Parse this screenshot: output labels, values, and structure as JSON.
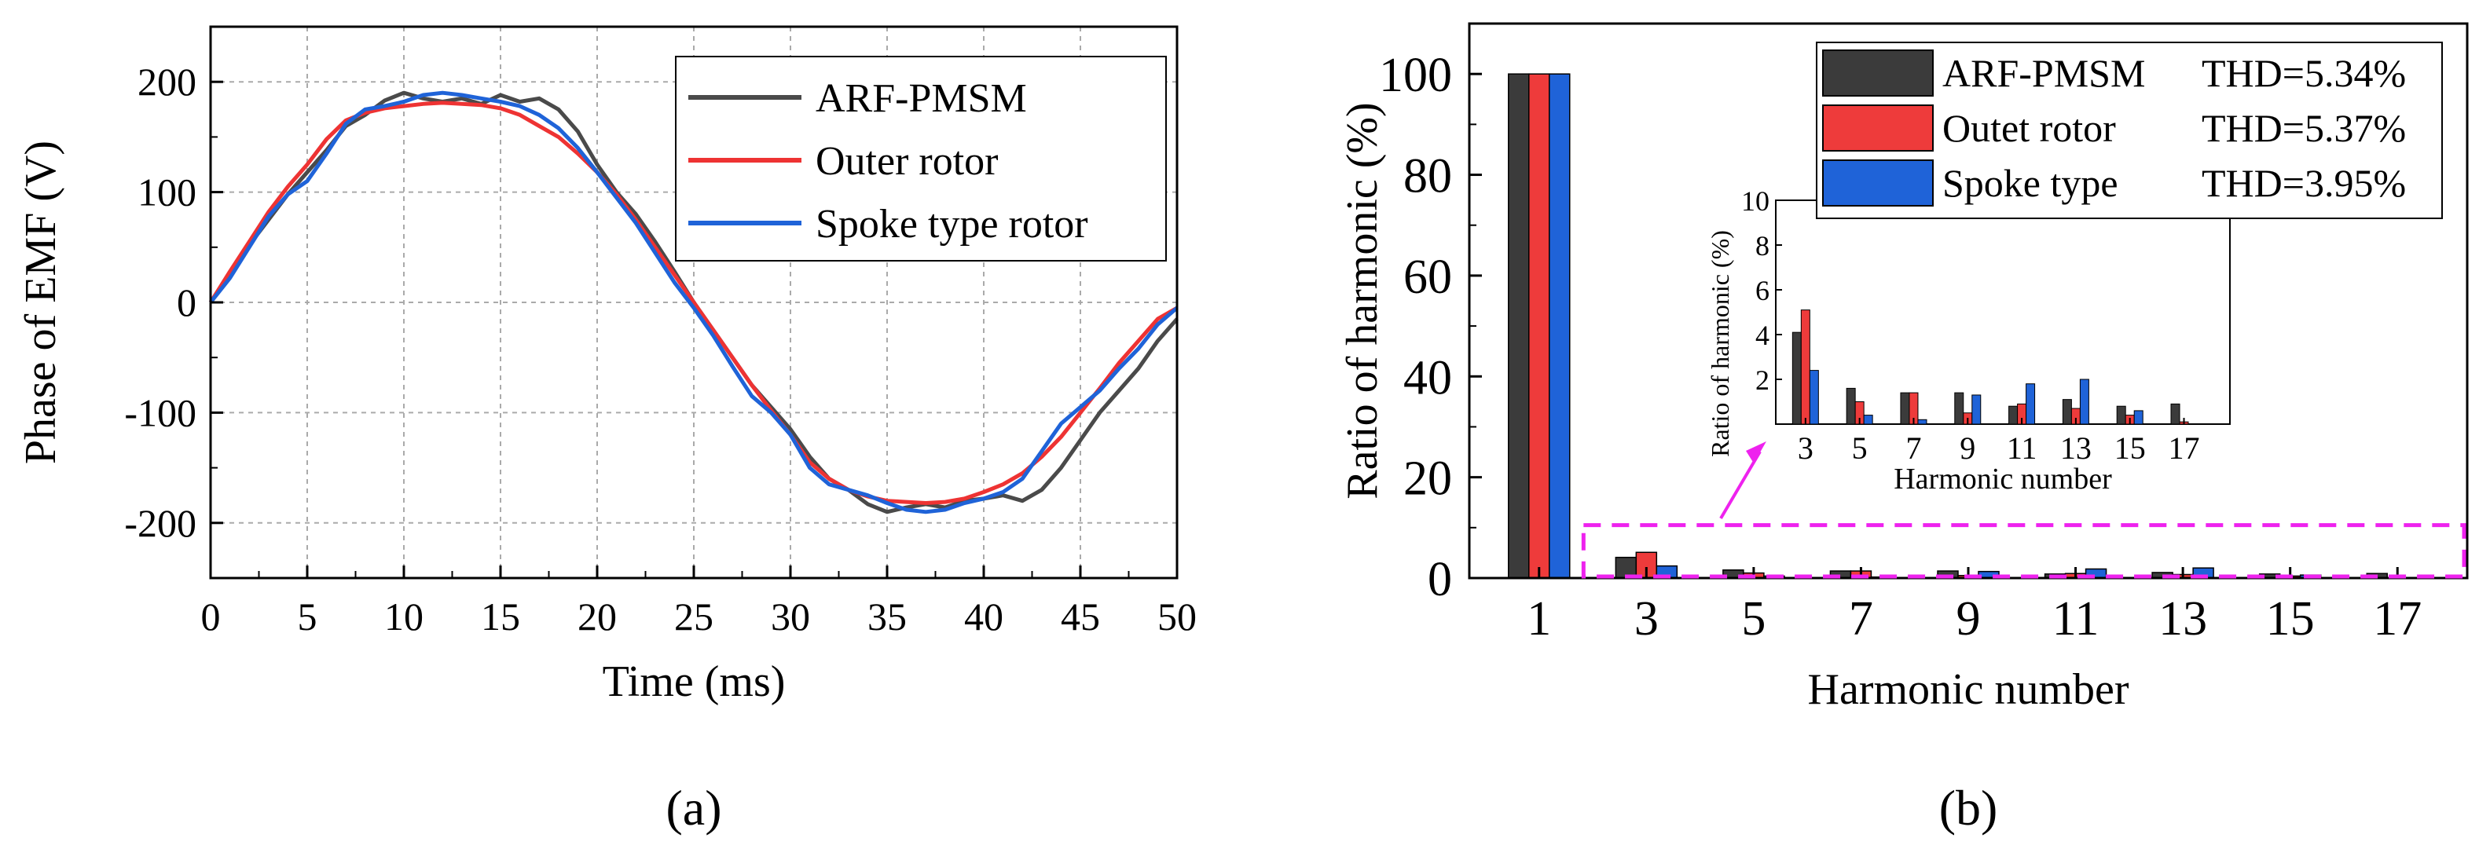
{
  "chart_data": [
    {
      "type": "line",
      "panel_label": "(a)",
      "title": "",
      "xlabel": "Time (ms)",
      "ylabel": "Phase of EMF (V)",
      "xlim": [
        0,
        50
      ],
      "ylim": [
        -250,
        250
      ],
      "xticks": [
        0,
        5,
        10,
        15,
        20,
        25,
        30,
        35,
        40,
        45,
        50
      ],
      "yticks": [
        -200,
        -100,
        0,
        100,
        200
      ],
      "grid": true,
      "legend": "top-right",
      "series": [
        {
          "name": "ARF-PMSM",
          "color": "#4a4a4a",
          "x": [
            0,
            1,
            2,
            3,
            4,
            5,
            6,
            7,
            8,
            9,
            10,
            11,
            12,
            13,
            14,
            15,
            16,
            17,
            18,
            19,
            20,
            21,
            22,
            23,
            24,
            25,
            26,
            27,
            28,
            29,
            30,
            31,
            32,
            33,
            34,
            35,
            36,
            37,
            38,
            39,
            40,
            41,
            42,
            43,
            44,
            45,
            46,
            47,
            48,
            49,
            50
          ],
          "values": [
            0,
            25,
            52,
            75,
            98,
            118,
            138,
            160,
            170,
            183,
            190,
            185,
            182,
            185,
            180,
            188,
            182,
            185,
            175,
            155,
            125,
            100,
            80,
            55,
            28,
            0,
            -25,
            -50,
            -75,
            -95,
            -115,
            -140,
            -160,
            -170,
            -183,
            -190,
            -186,
            -183,
            -186,
            -180,
            -178,
            -175,
            -180,
            -170,
            -150,
            -125,
            -100,
            -80,
            -60,
            -35,
            -15
          ]
        },
        {
          "name": "Outer rotor",
          "color": "#ee3333",
          "x": [
            0,
            1,
            2,
            3,
            4,
            5,
            6,
            7,
            8,
            9,
            10,
            11,
            12,
            13,
            14,
            15,
            16,
            17,
            18,
            19,
            20,
            21,
            22,
            23,
            24,
            25,
            26,
            27,
            28,
            29,
            30,
            31,
            32,
            33,
            34,
            35,
            36,
            37,
            38,
            39,
            40,
            41,
            42,
            43,
            44,
            45,
            46,
            47,
            48,
            49,
            50
          ],
          "values": [
            0,
            28,
            55,
            82,
            105,
            125,
            148,
            165,
            172,
            176,
            178,
            180,
            181,
            180,
            179,
            176,
            170,
            160,
            150,
            135,
            118,
            98,
            75,
            50,
            25,
            0,
            -25,
            -50,
            -75,
            -98,
            -120,
            -145,
            -160,
            -170,
            -176,
            -180,
            -181,
            -182,
            -181,
            -178,
            -172,
            -165,
            -155,
            -140,
            -122,
            -100,
            -78,
            -55,
            -35,
            -15,
            -5
          ]
        },
        {
          "name": "Spoke type rotor",
          "color": "#1f63d8",
          "x": [
            0,
            1,
            2,
            3,
            4,
            5,
            6,
            7,
            8,
            9,
            10,
            11,
            12,
            13,
            14,
            15,
            16,
            17,
            18,
            19,
            20,
            21,
            22,
            23,
            24,
            25,
            26,
            27,
            28,
            29,
            30,
            31,
            32,
            33,
            34,
            35,
            36,
            37,
            38,
            39,
            40,
            41,
            42,
            43,
            44,
            45,
            46,
            47,
            48,
            49,
            50
          ],
          "values": [
            0,
            22,
            50,
            78,
            98,
            110,
            135,
            162,
            175,
            178,
            182,
            188,
            190,
            188,
            185,
            182,
            178,
            170,
            158,
            140,
            118,
            95,
            72,
            45,
            18,
            -5,
            -30,
            -58,
            -85,
            -100,
            -120,
            -150,
            -165,
            -170,
            -175,
            -182,
            -188,
            -190,
            -188,
            -182,
            -178,
            -172,
            -160,
            -135,
            -110,
            -95,
            -80,
            -60,
            -42,
            -20,
            -5
          ]
        }
      ]
    },
    {
      "type": "bar",
      "panel_label": "(b)",
      "title": "",
      "xlabel": "Harmonic number",
      "ylabel": "Ratio of harmonic (%)",
      "ylim": [
        0,
        110
      ],
      "categories": [
        "1",
        "3",
        "5",
        "7",
        "9",
        "11",
        "13",
        "15",
        "17"
      ],
      "yticks": [
        0,
        20,
        40,
        60,
        80,
        100
      ],
      "legend": "top-right",
      "series": [
        {
          "name": "ARF-PMSM",
          "thd": "THD=5.34%",
          "color": "#3b3b3b",
          "values": [
            100,
            4.1,
            1.6,
            1.4,
            1.4,
            0.8,
            1.1,
            0.8,
            0.9
          ]
        },
        {
          "name": "Outet rotor",
          "thd": "THD=5.37%",
          "color": "#ee3b3b",
          "values": [
            100,
            5.1,
            1.0,
            1.4,
            0.5,
            0.9,
            0.7,
            0.4,
            0.1
          ]
        },
        {
          "name": "Spoke type",
          "thd": "THD=3.95%",
          "color": "#1f63d8",
          "values": [
            100,
            2.4,
            0.4,
            0.2,
            1.3,
            1.8,
            2.0,
            0.6,
            0.0
          ]
        }
      ],
      "inset": {
        "xlabel": "Harmonic number",
        "ylabel": "Ratio of harmonic (%)",
        "ylim": [
          0,
          10
        ],
        "yticks": [
          2,
          4,
          6,
          8,
          10
        ],
        "categories": [
          "3",
          "5",
          "7",
          "9",
          "11",
          "13",
          "15",
          "17"
        ]
      }
    }
  ]
}
